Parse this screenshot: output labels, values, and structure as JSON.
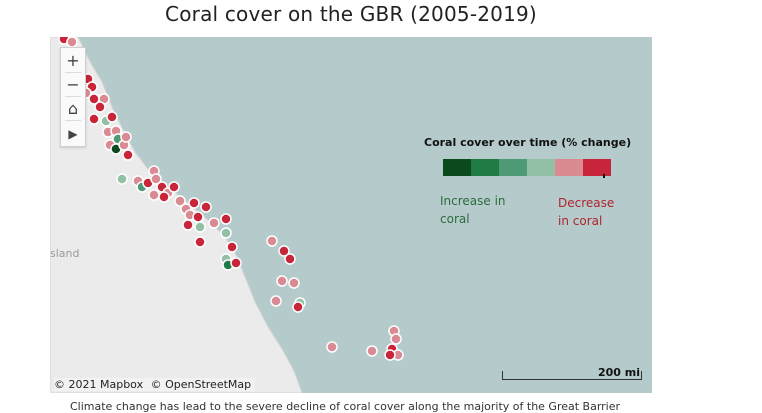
{
  "title": "Coral cover on the GBR (2005-2019)",
  "map": {
    "land_label": "sland",
    "attribution": [
      "© 2021 Mapbox",
      "© OpenStreetMap"
    ],
    "scale_label": "200 mi",
    "controls": {
      "zoom_in": "+",
      "zoom_out": "−",
      "home": "⌂",
      "play": "▶"
    }
  },
  "legend": {
    "title": "Coral cover over time (% change)",
    "colors": [
      "#0b4a1c",
      "#1f7a43",
      "#4e9a74",
      "#93bfa5",
      "#d98a92",
      "#c8243a"
    ],
    "increase_label": [
      "Increase in",
      "coral"
    ],
    "decrease_label": [
      "Decrease",
      "in coral"
    ]
  },
  "caption": "Climate change has lead to the severe decline of coral cover along the majority of the Great Barrier"
}
